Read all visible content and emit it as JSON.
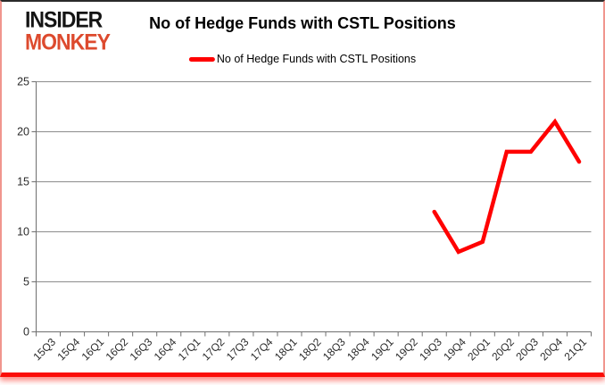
{
  "branding": {
    "logo_line1": "INSIDER",
    "logo_line2": "MONKEY"
  },
  "header": {
    "title": "No of Hedge Funds with CSTL Positions"
  },
  "legend": {
    "label": "No of Hedge Funds with CSTL Positions"
  },
  "chart_data": {
    "type": "line",
    "title": "No of Hedge Funds with CSTL Positions",
    "categories": [
      "15Q3",
      "15Q4",
      "16Q1",
      "16Q2",
      "16Q3",
      "16Q4",
      "17Q1",
      "17Q2",
      "17Q3",
      "17Q4",
      "18Q1",
      "18Q2",
      "18Q3",
      "18Q4",
      "19Q1",
      "19Q2",
      "19Q3",
      "19Q4",
      "20Q1",
      "20Q2",
      "20Q3",
      "20Q4",
      "21Q1"
    ],
    "series": [
      {
        "name": "No of Hedge Funds with CSTL Positions",
        "color": "#ff0000",
        "values": [
          null,
          null,
          null,
          null,
          null,
          null,
          null,
          null,
          null,
          null,
          null,
          null,
          null,
          null,
          null,
          null,
          12,
          8,
          9,
          18,
          18,
          21,
          17
        ]
      }
    ],
    "ylim": [
      0,
      25
    ],
    "yticks": [
      0,
      5,
      10,
      15,
      20,
      25
    ],
    "grid": true,
    "legend_position": "top",
    "xlabel": "",
    "ylabel": ""
  },
  "style": {
    "line_red": "#ff0000",
    "logo_black": "#141414",
    "logo_red": "#dd4a2e",
    "gridline_color": "#8c8c8c",
    "axis_color": "#6f6f6f",
    "tick_label_color": "#2b2b2b",
    "border_top_color": "#2a2a2a",
    "border_side_color": "#f0968e",
    "border_bottom_color": "#fb0d07"
  }
}
